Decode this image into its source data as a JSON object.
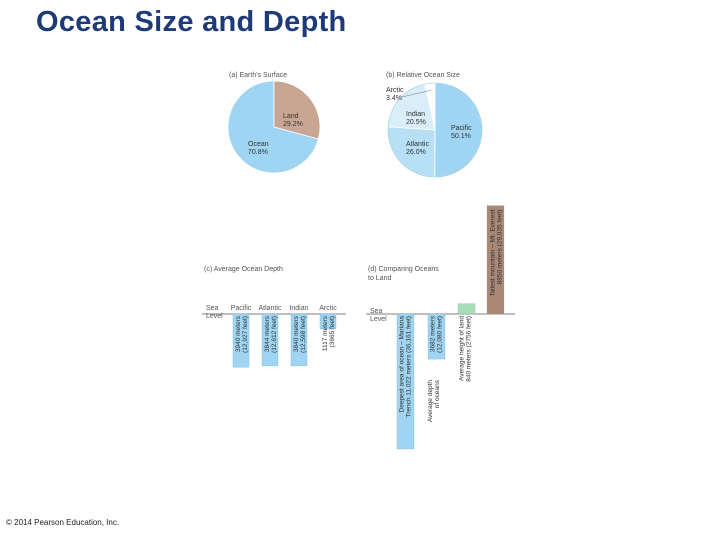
{
  "slide": {
    "title": "Ocean Size and Depth",
    "copyright": "© 2014 Pearson Education, Inc."
  },
  "colors": {
    "ocean_fill": "#9fd4f2",
    "ocean_light": "#d9eef9",
    "land_fill": "#c9a694",
    "mountain_fill": "#a98876",
    "land_height_fill": "#a8ddb5",
    "title_blue": "#1f3a78",
    "text_gray": "#555555"
  },
  "chart_data": [
    {
      "type": "pie",
      "title": "(a) Earth's Surface",
      "slices": [
        {
          "label": "Land",
          "value": 29.2,
          "value_text": "29.2%"
        },
        {
          "label": "Ocean",
          "value": 70.8,
          "value_text": "70.8%"
        }
      ]
    },
    {
      "type": "pie",
      "title": "(b) Relative Ocean Size",
      "slices": [
        {
          "label": "Pacific",
          "value": 50.1,
          "value_text": "50.1%"
        },
        {
          "label": "Atlantic",
          "value": 26.0,
          "value_text": "26.0%"
        },
        {
          "label": "Indian",
          "value": 20.5,
          "value_text": "20.5%"
        },
        {
          "label": "Arctic",
          "value": 3.4,
          "value_text": "3.4%"
        }
      ]
    },
    {
      "type": "bar",
      "title": "(c) Average Ocean Depth",
      "baseline_label": [
        "Sea",
        "Level"
      ],
      "categories": [
        "Pacific",
        "Atlantic",
        "Indian",
        "Arctic"
      ],
      "values": [
        -3940,
        -3844,
        -3840,
        -1117
      ],
      "bar_labels": [
        [
          "3940 meters",
          "(12,927 feet)"
        ],
        [
          "3844 meters",
          "(12,612 feet)"
        ],
        [
          "3840 meters",
          "(12,598 feet)"
        ],
        [
          "1117 meters",
          "(3665 feet)"
        ]
      ]
    },
    {
      "type": "bar",
      "title": [
        "(d)  Comparing Oceans",
        "to Land"
      ],
      "baseline_label": [
        "Sea",
        "Level"
      ],
      "values": [
        -11022,
        -3682,
        840,
        8850
      ],
      "bar_labels": [
        [
          "Deepest area of ocean – Mariana",
          "Trench 11,022 meters (36,161 feet)"
        ],
        [
          "3682 meters",
          "(12,080 feet)"
        ],
        [
          "Average height of land",
          "840 meters (2756 feet)"
        ],
        [
          "Tallest mountain – Mt. Everest",
          "8850 meters (29,035 feet)"
        ]
      ],
      "side_labels": [
        [
          "Average depth",
          "of oceans"
        ]
      ]
    }
  ]
}
